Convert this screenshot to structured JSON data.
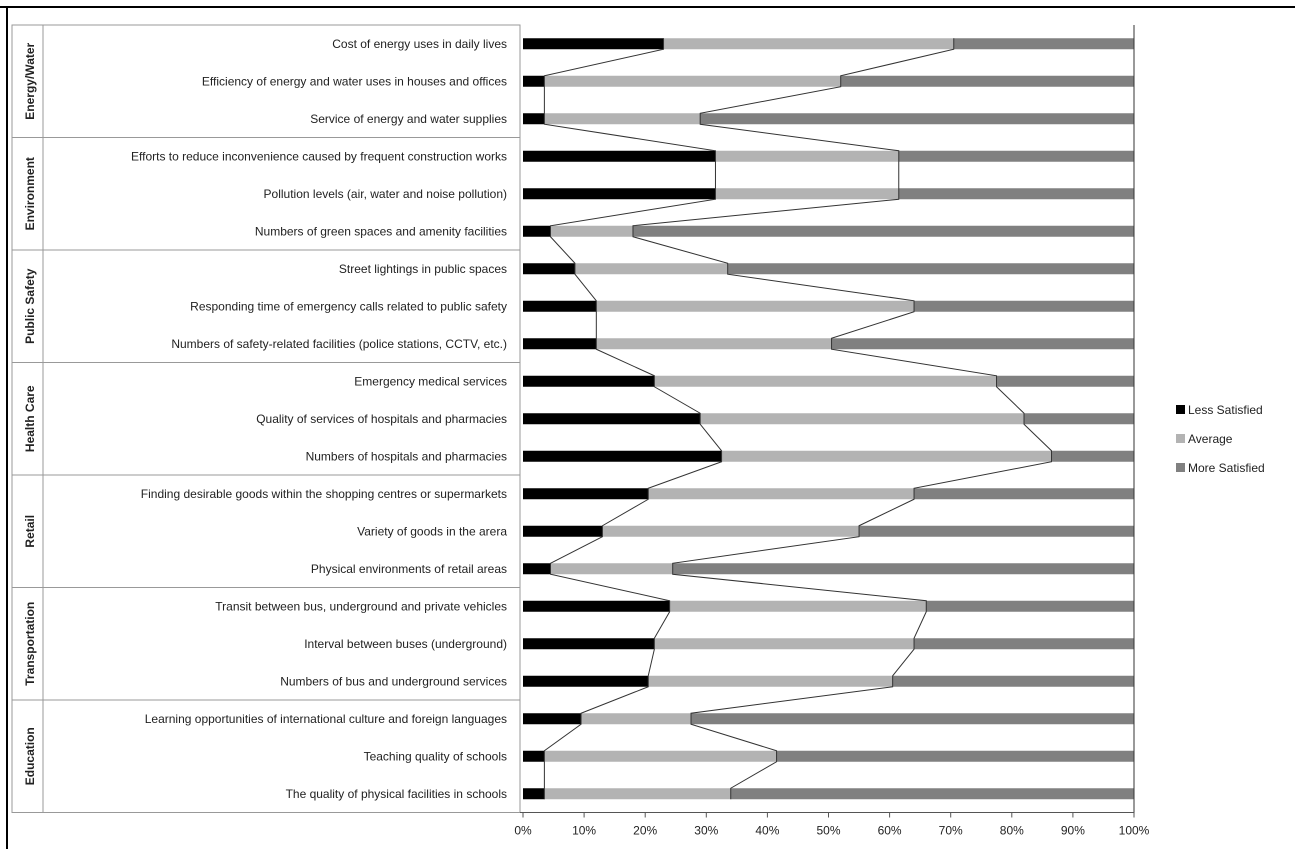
{
  "chart_data": {
    "type": "bar",
    "orientation": "horizontal",
    "stacked": "100%",
    "series_lines": true,
    "xlim": [
      0,
      100
    ],
    "x_ticks": [
      "0%",
      "10%",
      "20%",
      "30%",
      "40%",
      "50%",
      "60%",
      "70%",
      "80%",
      "90%",
      "100%"
    ],
    "groups": [
      {
        "name": "Energy/Water",
        "start": 0,
        "count": 3
      },
      {
        "name": "Environment",
        "start": 3,
        "count": 3
      },
      {
        "name": "Public Safety",
        "start": 6,
        "count": 3
      },
      {
        "name": "Health Care",
        "start": 9,
        "count": 3
      },
      {
        "name": "Retail",
        "start": 12,
        "count": 3
      },
      {
        "name": "Transportation",
        "start": 15,
        "count": 3
      },
      {
        "name": "Education",
        "start": 18,
        "count": 3
      }
    ],
    "categories": [
      "Cost of energy uses in daily lives",
      "Efficiency of energy and water uses in houses and offices",
      "Service of energy and water supplies",
      "Efforts to reduce inconvenience caused by frequent construction works",
      "Pollution levels (air, water and noise pollution)",
      "Numbers of green spaces and amenity facilities",
      "Street lightings in public spaces",
      "Responding time of emergency calls related to public safety",
      "Numbers of safety-related facilities (police stations, CCTV, etc.)",
      "Emergency medical services",
      "Quality of services of hospitals and pharmacies",
      "Numbers of hospitals and pharmacies",
      "Finding desirable goods  within the shopping centres or supermarkets",
      "Variety of goods in the arera",
      "Physical environments of retail areas",
      "Transit between bus, underground and private vehicles",
      "Interval between buses  (underground)",
      "Numbers of bus and underground services",
      "Learning opportunities of international culture and foreign languages",
      "Teaching quality of schools",
      "The quality of physical facilities in schools"
    ],
    "series": [
      {
        "name": "Less Satisfied",
        "color": "#000000",
        "values": [
          23,
          3.5,
          3.5,
          31.5,
          31.5,
          4.5,
          8.5,
          12,
          12,
          21.5,
          29,
          32.5,
          20.5,
          13,
          4.5,
          24,
          21.5,
          20.5,
          9.5,
          3.5,
          3.5
        ]
      },
      {
        "name": "Average",
        "color": "#b3b3b3",
        "values": [
          47.5,
          48.5,
          25.5,
          30,
          30,
          13.5,
          25,
          52,
          38.5,
          56,
          53,
          54,
          43.5,
          42,
          20,
          42,
          42.5,
          40,
          18,
          38,
          30.5
        ]
      },
      {
        "name": "More Satisfied",
        "color": "#808080",
        "values": [
          29.5,
          48,
          71,
          38.5,
          38.5,
          82,
          66.5,
          36,
          49.5,
          22.5,
          18,
          13.5,
          36,
          45,
          75.5,
          34,
          36,
          39.5,
          72.5,
          58.5,
          66
        ]
      }
    ],
    "legend_position": "right",
    "grid": false
  }
}
